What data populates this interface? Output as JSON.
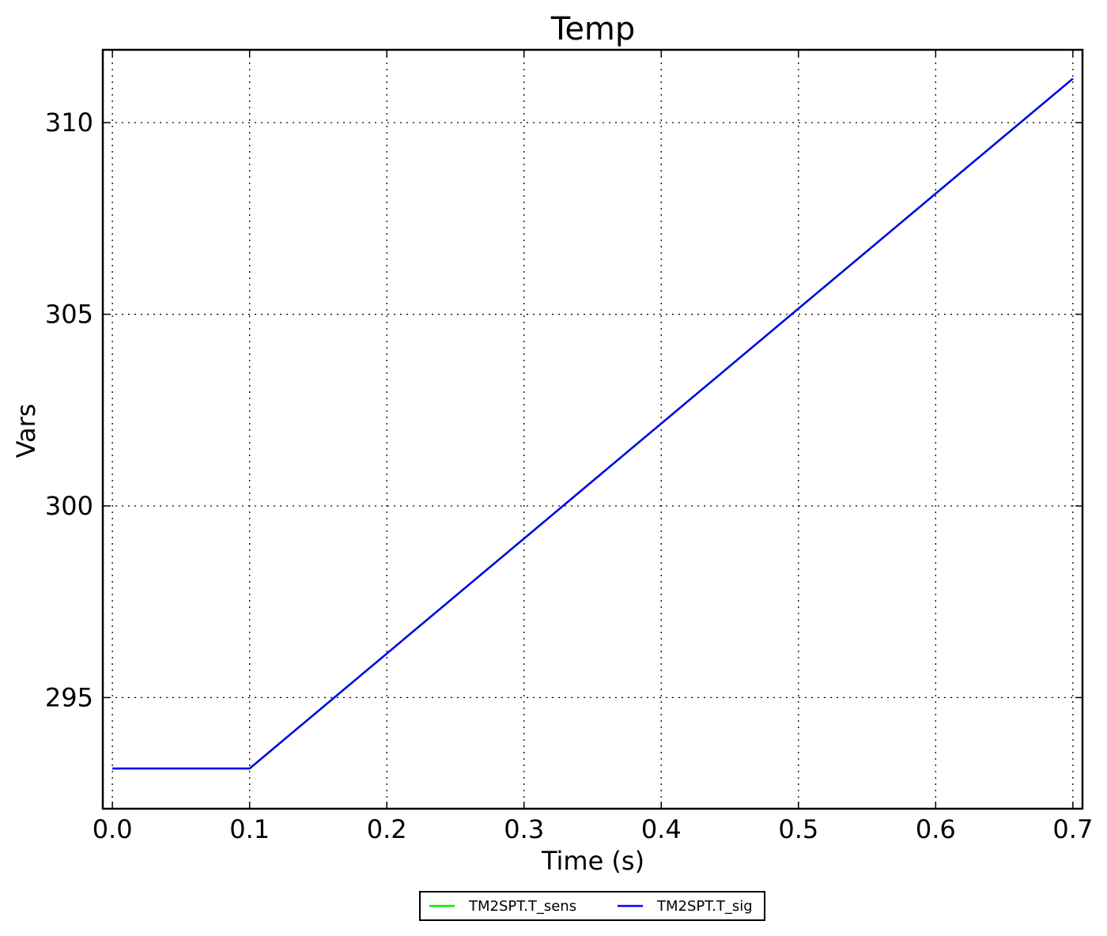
{
  "chart_data": {
    "type": "line",
    "title": "Temp",
    "xlabel": "Time (s)",
    "ylabel": "Vars",
    "xlim": [
      -0.007,
      0.707
    ],
    "ylim": [
      292.1,
      311.9
    ],
    "xticks": [
      0.0,
      0.1,
      0.2,
      0.3,
      0.4,
      0.5,
      0.6,
      0.7
    ],
    "xtick_labels": [
      "0.0",
      "0.1",
      "0.2",
      "0.3",
      "0.4",
      "0.5",
      "0.6",
      "0.7"
    ],
    "yticks": [
      295,
      300,
      305,
      310
    ],
    "ytick_labels": [
      "295",
      "300",
      "305",
      "310"
    ],
    "grid": true,
    "legend_position": "bottom-center",
    "series": [
      {
        "name": "TM2SPT.T_sens",
        "color": "#00ee00",
        "x": [
          0.0,
          0.1,
          0.7
        ],
        "y": [
          293.15,
          293.15,
          311.15
        ]
      },
      {
        "name": "TM2SPT.T_sig",
        "color": "#0000ee",
        "x": [
          0.0,
          0.1,
          0.7
        ],
        "y": [
          293.15,
          293.15,
          311.15
        ]
      }
    ]
  }
}
